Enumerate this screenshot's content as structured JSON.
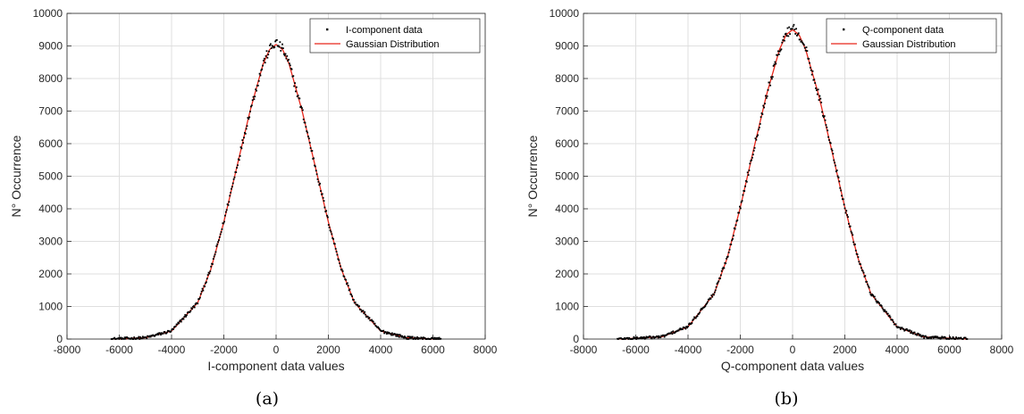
{
  "figure": {
    "panels": [
      {
        "caption": "(a)",
        "chart_data": {
          "type": "scatter",
          "title": "",
          "xlabel": "I-component data values",
          "ylabel": "N° Occurrence",
          "xlim": [
            -8000,
            8000
          ],
          "ylim": [
            0,
            10000
          ],
          "xticks": [
            "-8000",
            "-6000",
            "-4000",
            "-2000",
            "0",
            "2000",
            "4000",
            "6000",
            "8000"
          ],
          "yticks": [
            "0",
            "1000",
            "2000",
            "3000",
            "4000",
            "5000",
            "6000",
            "7000",
            "8000",
            "9000",
            "10000"
          ],
          "grid": true,
          "legend_position": "top-right",
          "series": [
            {
              "name": "I-component data",
              "kind": "points",
              "color": "#000000",
              "x_range": [
                -6300,
                6300
              ],
              "x": [
                -6000,
                -5000,
                -4000,
                -3000,
                -2500,
                -2000,
                -1500,
                -1000,
                -500,
                -250,
                0,
                250,
                500,
                1000,
                1500,
                2000,
                2500,
                3000,
                4000,
                5000,
                6000
              ],
              "y": [
                5,
                40,
                250,
                1120,
                2140,
                3600,
                5300,
                7000,
                8450,
                8900,
                9100,
                8900,
                8450,
                7000,
                5300,
                3600,
                2140,
                1120,
                250,
                40,
                5
              ]
            },
            {
              "name": "Gaussian Distribution",
              "kind": "line",
              "color": "#e8261a",
              "x_range": [
                -6300,
                6300
              ],
              "x": [
                -6000,
                -5000,
                -4000,
                -3000,
                -2500,
                -2000,
                -1500,
                -1000,
                -500,
                -250,
                0,
                250,
                500,
                1000,
                1500,
                2000,
                2500,
                3000,
                4000,
                5000,
                6000
              ],
              "y": [
                4,
                38,
                247,
                1115,
                2135,
                3590,
                5290,
                6990,
                8440,
                8890,
                9050,
                8890,
                8440,
                6990,
                5290,
                3590,
                2135,
                1115,
                247,
                38,
                4
              ]
            }
          ]
        }
      },
      {
        "caption": "(b)",
        "chart_data": {
          "type": "scatter",
          "title": "",
          "xlabel": "Q-component data values",
          "ylabel": "N° Occurrence",
          "xlim": [
            -8000,
            8000
          ],
          "ylim": [
            0,
            10000
          ],
          "xticks": [
            "-8000",
            "-6000",
            "-4000",
            "-2000",
            "0",
            "2000",
            "4000",
            "6000",
            "8000"
          ],
          "yticks": [
            "0",
            "1000",
            "2000",
            "3000",
            "4000",
            "5000",
            "6000",
            "7000",
            "8000",
            "9000",
            "10000"
          ],
          "grid": true,
          "legend_position": "top-right",
          "series": [
            {
              "name": "Q-component data",
              "kind": "points",
              "color": "#000000",
              "x_range": [
                -6700,
                6700
              ],
              "x": [
                -6500,
                -5000,
                -4000,
                -3000,
                -2500,
                -2000,
                -1500,
                -1000,
                -500,
                -250,
                0,
                250,
                500,
                1000,
                1500,
                2000,
                2500,
                3000,
                4000,
                5000,
                6500
              ],
              "y": [
                4,
                70,
                380,
                1400,
                2500,
                4050,
                5800,
                7500,
                8900,
                9350,
                9600,
                9350,
                8900,
                7500,
                5800,
                4050,
                2500,
                1400,
                380,
                70,
                4
              ]
            },
            {
              "name": "Gaussian Distribution",
              "kind": "line",
              "color": "#e8261a",
              "x_range": [
                -6700,
                6700
              ],
              "x": [
                -6500,
                -5000,
                -4000,
                -3000,
                -2500,
                -2000,
                -1500,
                -1000,
                -500,
                -250,
                0,
                250,
                500,
                1000,
                1500,
                2000,
                2500,
                3000,
                4000,
                5000,
                6500
              ],
              "y": [
                3,
                68,
                375,
                1390,
                2490,
                4040,
                5790,
                7490,
                8890,
                9340,
                9500,
                9340,
                8890,
                7490,
                5790,
                4040,
                2490,
                1390,
                375,
                68,
                3
              ]
            }
          ]
        }
      }
    ]
  }
}
